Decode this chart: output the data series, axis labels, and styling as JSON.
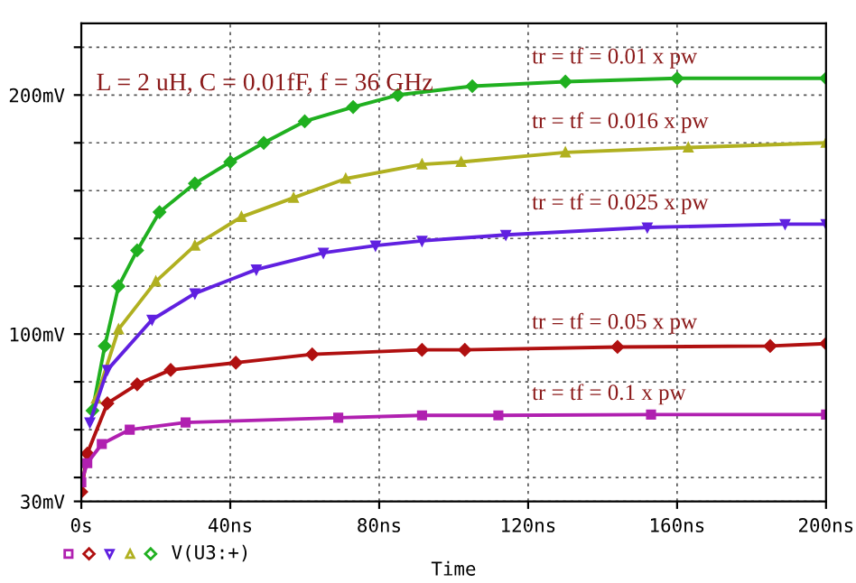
{
  "chart_data": {
    "type": "line",
    "xlabel": "Time",
    "annotations": [
      "L = 2 uH, C = 0.01fF, f = 36 GHz",
      "V(U3:+)"
    ],
    "xlim": [
      0,
      200
    ],
    "ylim": [
      30,
      230
    ],
    "xticks": [
      {
        "value": 0,
        "label": "0s"
      },
      {
        "value": 40,
        "label": "40ns"
      },
      {
        "value": 80,
        "label": "80ns"
      },
      {
        "value": 120,
        "label": "120ns"
      },
      {
        "value": 160,
        "label": "160ns"
      },
      {
        "value": 200,
        "label": "200ns"
      }
    ],
    "yticks": [
      {
        "value": 30,
        "label": "30mV"
      },
      {
        "value": 40,
        "label": null
      },
      {
        "value": 60,
        "label": null
      },
      {
        "value": 80,
        "label": null
      },
      {
        "value": 100,
        "label": "100mV"
      },
      {
        "value": 120,
        "label": null
      },
      {
        "value": 140,
        "label": null
      },
      {
        "value": 160,
        "label": null
      },
      {
        "value": 180,
        "label": null
      },
      {
        "value": 200,
        "label": "200mV"
      },
      {
        "value": 220,
        "label": null
      }
    ],
    "grid": true,
    "line_style": "solid",
    "series": [
      {
        "name": "tr = tf = 0.01 x pw",
        "color": "#20b020",
        "marker": "diamond",
        "x": [
          3,
          6.3,
          10,
          15,
          21,
          30.5,
          40,
          49,
          60,
          73,
          85,
          105,
          130,
          160,
          200
        ],
        "values": [
          68,
          95,
          120,
          135,
          151,
          163,
          172,
          180,
          189,
          195,
          200,
          203.7,
          205.6,
          207,
          207
        ]
      },
      {
        "name": "tr = tf = 0.016 x pw",
        "color": "#b0b020",
        "marker": "triangle",
        "x": [
          4,
          10,
          20,
          30.5,
          43,
          57,
          71,
          91.5,
          102,
          130,
          163,
          200
        ],
        "values": [
          73,
          102,
          122,
          137,
          149,
          157,
          165,
          171,
          172,
          176,
          178,
          180
        ]
      },
      {
        "name": "tr = tf = 0.025 x pw",
        "color": "#6020e0",
        "marker": "triangle_down",
        "x": [
          2.3,
          7,
          19,
          30.5,
          47,
          65,
          79,
          91.5,
          114,
          152,
          189,
          200
        ],
        "values": [
          63,
          85,
          106,
          117,
          127,
          134,
          137,
          139,
          141.5,
          144.6,
          146,
          146
        ]
      },
      {
        "name": "tr = tf = 0.05 x pw",
        "color": "#b01010",
        "marker": "diamond",
        "x": [
          0,
          1.6,
          7,
          15,
          24,
          41.5,
          62,
          91.5,
          103,
          144,
          185,
          200
        ],
        "values": [
          34,
          50,
          71,
          79,
          85,
          88,
          91.5,
          93.4,
          93.4,
          94.6,
          95,
          96
        ]
      },
      {
        "name": "tr = tf = 0.1 x pw",
        "color": "#b020b0",
        "marker": "square",
        "x": [
          0,
          1.6,
          5.5,
          13,
          28,
          69,
          91.5,
          112,
          153,
          200
        ],
        "values": [
          38,
          46,
          54,
          60,
          63,
          65,
          66,
          66,
          66.3,
          66.3
        ]
      }
    ]
  }
}
